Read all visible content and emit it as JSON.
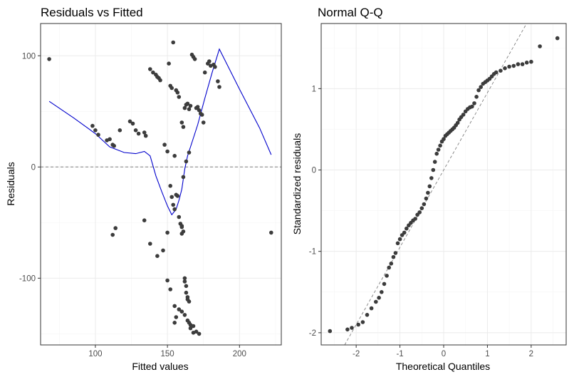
{
  "chart_data": [
    {
      "type": "scatter",
      "title": "Residuals vs Fitted",
      "xlabel": "Fitted values",
      "ylabel": "Residuals",
      "xlim": [
        62,
        229
      ],
      "ylim": [
        -160,
        129
      ],
      "xticks": [
        100,
        150,
        200
      ],
      "yticks": [
        -100,
        0,
        100
      ],
      "grid": true,
      "reference_line": {
        "y": 0,
        "style": "dashed",
        "color": "#808080"
      },
      "smooth": {
        "color": "#0000cc",
        "x": [
          68,
          85,
          100,
          110,
          120,
          128,
          134,
          138,
          142,
          146,
          150,
          153,
          156,
          158,
          160,
          162,
          164,
          167,
          171,
          176,
          181,
          186,
          200,
          214,
          222
        ],
        "y": [
          59,
          44,
          30,
          18,
          13,
          12,
          14,
          10,
          -8,
          -22,
          -35,
          -43,
          -38,
          -30,
          -20,
          -2,
          10,
          22,
          38,
          62,
          85,
          106,
          70,
          35,
          11
        ]
      },
      "points": {
        "x": [
          68,
          98,
          100,
          102,
          108,
          110,
          112,
          113,
          117,
          124,
          126,
          128,
          130,
          134,
          135,
          138,
          140,
          142,
          143,
          144,
          145,
          148,
          150,
          151,
          152,
          153,
          154,
          155,
          156,
          157,
          158,
          160,
          161,
          162,
          163,
          164,
          165,
          166,
          167,
          168,
          169,
          170,
          171,
          172,
          173,
          174,
          175,
          176,
          178,
          179,
          180,
          182,
          183,
          185,
          186,
          222,
          112,
          114,
          134,
          138,
          143,
          147,
          150,
          152,
          153,
          154,
          155,
          156,
          157,
          158,
          159,
          160,
          160,
          161,
          162,
          162,
          163,
          163,
          164,
          164,
          165,
          165,
          166,
          168,
          150,
          152,
          155,
          158,
          160,
          162,
          164,
          166,
          168,
          170,
          172,
          155,
          156,
          160,
          161,
          163,
          165
        ],
        "y": [
          97,
          37,
          33,
          29,
          24,
          25,
          20,
          19,
          33,
          41,
          39,
          33,
          30,
          31,
          28,
          88,
          85,
          83,
          81,
          80,
          78,
          20,
          14,
          93,
          73,
          71,
          112,
          10,
          69,
          67,
          63,
          40,
          36,
          53,
          56,
          57,
          52,
          55,
          101,
          99,
          97,
          53,
          54,
          51,
          48,
          47,
          40,
          85,
          93,
          95,
          91,
          92,
          90,
          77,
          72,
          -59,
          -61,
          -55,
          -48,
          -69,
          -80,
          -75,
          -59,
          -17,
          -27,
          -34,
          -38,
          -25,
          -26,
          -45,
          -51,
          -53,
          -54,
          -58,
          -100,
          -103,
          -107,
          -113,
          -117,
          -119,
          -121,
          -140,
          -145,
          -149,
          -102,
          -110,
          -125,
          -128,
          -130,
          -133,
          -138,
          -142,
          -143,
          -148,
          -150,
          -140,
          -135,
          -60,
          -9,
          5,
          13
        ]
      }
    },
    {
      "type": "scatter",
      "title": "Normal Q-Q",
      "xlabel": "Theoretical Quantiles",
      "ylabel": "Standardized residuals",
      "xlim": [
        -2.8,
        2.8
      ],
      "ylim": [
        -2.15,
        1.8
      ],
      "xticks": [
        -2,
        -1,
        0,
        1,
        2
      ],
      "yticks": [
        -2,
        -1,
        0,
        1
      ],
      "grid": true,
      "reference_line": {
        "slope": 0.95,
        "intercept": 0.0,
        "style": "dashed",
        "color": "#808080"
      },
      "points": {
        "x": [
          -2.6,
          -2.2,
          -2.1,
          -1.95,
          -1.85,
          -1.75,
          -1.65,
          -1.55,
          -1.48,
          -1.42,
          -1.36,
          -1.3,
          -1.25,
          -1.2,
          -1.15,
          -1.1,
          -1.05,
          -1.0,
          -0.95,
          -0.9,
          -0.85,
          -0.8,
          -0.75,
          -0.7,
          -0.65,
          -0.6,
          -0.55,
          -0.5,
          -0.45,
          -0.4,
          -0.36,
          -0.32,
          -0.28,
          -0.24,
          -0.2,
          -0.16,
          -0.12,
          -0.08,
          -0.04,
          0.0,
          0.04,
          0.08,
          0.12,
          0.16,
          0.2,
          0.24,
          0.28,
          0.32,
          0.36,
          0.4,
          0.45,
          0.5,
          0.55,
          0.6,
          0.65,
          0.7,
          0.75,
          0.8,
          0.85,
          0.9,
          0.95,
          1.0,
          1.05,
          1.1,
          1.15,
          1.2,
          1.3,
          1.4,
          1.5,
          1.6,
          1.7,
          1.8,
          1.9,
          2.0,
          2.2,
          2.6
        ],
        "y": [
          -1.98,
          -1.96,
          -1.94,
          -1.9,
          -1.87,
          -1.78,
          -1.7,
          -1.62,
          -1.57,
          -1.5,
          -1.4,
          -1.3,
          -1.2,
          -1.15,
          -1.07,
          -1.02,
          -0.9,
          -0.85,
          -0.8,
          -0.77,
          -0.72,
          -0.68,
          -0.65,
          -0.62,
          -0.6,
          -0.55,
          -0.52,
          -0.47,
          -0.42,
          -0.35,
          -0.28,
          -0.2,
          -0.1,
          0.0,
          0.1,
          0.2,
          0.25,
          0.3,
          0.35,
          0.38,
          0.42,
          0.44,
          0.46,
          0.48,
          0.5,
          0.52,
          0.55,
          0.58,
          0.62,
          0.65,
          0.68,
          0.72,
          0.75,
          0.77,
          0.78,
          0.82,
          0.9,
          0.98,
          1.02,
          1.06,
          1.08,
          1.1,
          1.12,
          1.15,
          1.18,
          1.2,
          1.22,
          1.25,
          1.27,
          1.28,
          1.3,
          1.3,
          1.32,
          1.33,
          1.52,
          1.62
        ]
      }
    }
  ]
}
